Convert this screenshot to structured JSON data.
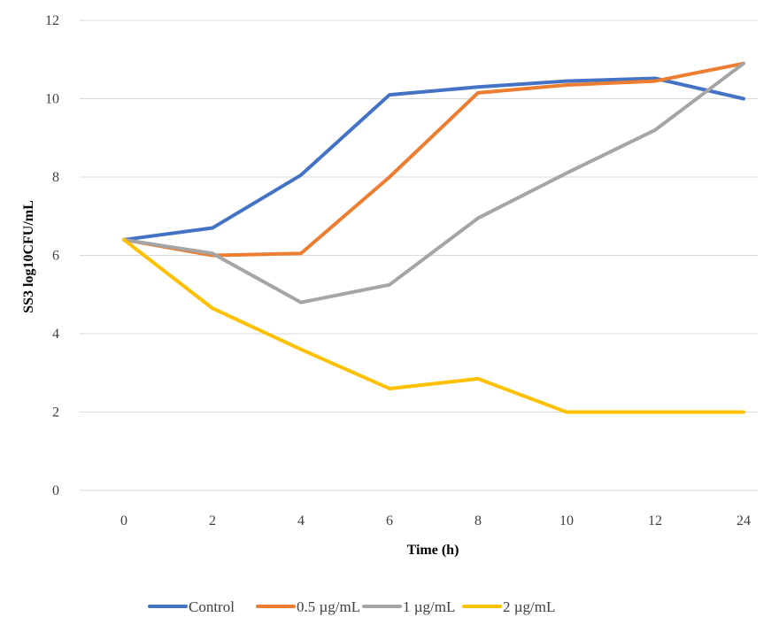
{
  "chart_data": {
    "type": "line",
    "categories": [
      "0",
      "2",
      "4",
      "6",
      "8",
      "10",
      "12",
      "24"
    ],
    "xlabel": "Time (h)",
    "ylabel": "SS3 log10CFU/mL",
    "ylim": [
      0,
      12
    ],
    "yticks": [
      0,
      2,
      4,
      6,
      8,
      10,
      12
    ],
    "grid": true,
    "legend_position": "bottom",
    "series": [
      {
        "name": "Control",
        "color": "#4472C4",
        "values": [
          6.4,
          6.7,
          8.05,
          10.1,
          10.3,
          10.45,
          10.52,
          10.0
        ]
      },
      {
        "name": "0.5 µg/mL",
        "color": "#ED7D31",
        "values": [
          6.4,
          6.0,
          6.05,
          8.0,
          10.15,
          10.35,
          10.45,
          10.9
        ]
      },
      {
        "name": "1 µg/mL",
        "color": "#A5A5A5",
        "values": [
          6.4,
          6.05,
          4.8,
          5.25,
          6.95,
          8.1,
          9.2,
          10.9
        ]
      },
      {
        "name": "2 µg/mL",
        "color": "#FFC000",
        "values": [
          6.4,
          4.65,
          3.6,
          2.6,
          2.85,
          2.0,
          2.0,
          2.0
        ]
      }
    ]
  }
}
